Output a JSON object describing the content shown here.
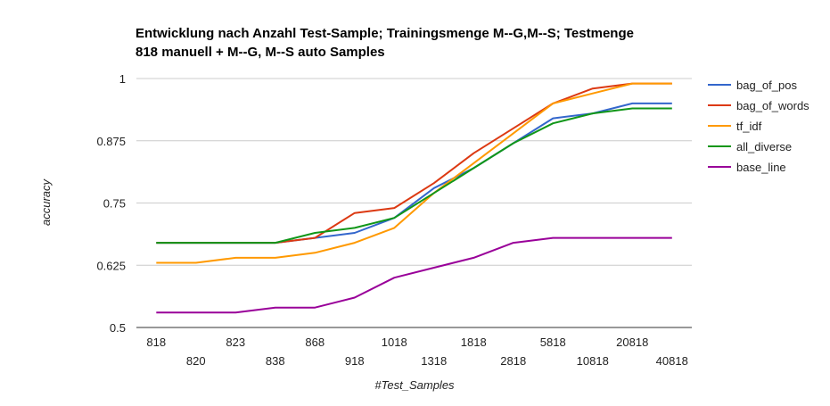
{
  "chart_data": {
    "type": "line",
    "title": [
      "Entwicklung nach Anzahl Test-Sample; Trainingsmenge M--G,M--S; Testmenge",
      "818 manuell + M--G, M--S auto Samples"
    ],
    "xlabel": "#Test_Samples",
    "ylabel": "accuracy",
    "categories": [
      "818",
      "820",
      "823",
      "838",
      "868",
      "918",
      "1018",
      "1318",
      "1818",
      "2818",
      "5818",
      "10818",
      "20818",
      "40818"
    ],
    "y_ticks": [
      "0.5",
      "0.625",
      "0.75",
      "0.875",
      "1"
    ],
    "ylim": [
      0.5,
      1.0
    ],
    "grid": true,
    "legend_position": "right",
    "series": [
      {
        "name": "bag_of_pos",
        "color": "#3366cc",
        "values": [
          0.67,
          0.67,
          0.67,
          0.67,
          0.68,
          0.69,
          0.72,
          0.78,
          0.82,
          0.87,
          0.92,
          0.93,
          0.95,
          0.95
        ]
      },
      {
        "name": "bag_of_words",
        "color": "#dc3912",
        "values": [
          0.67,
          0.67,
          0.67,
          0.67,
          0.68,
          0.73,
          0.74,
          0.79,
          0.85,
          0.9,
          0.95,
          0.98,
          0.99,
          0.99
        ]
      },
      {
        "name": "tf_idf",
        "color": "#ff9900",
        "values": [
          0.63,
          0.63,
          0.64,
          0.64,
          0.65,
          0.67,
          0.7,
          0.77,
          0.83,
          0.89,
          0.95,
          0.97,
          0.99,
          0.99
        ]
      },
      {
        "name": "all_diverse",
        "color": "#109618",
        "values": [
          0.67,
          0.67,
          0.67,
          0.67,
          0.69,
          0.7,
          0.72,
          0.77,
          0.82,
          0.87,
          0.91,
          0.93,
          0.94,
          0.94
        ]
      },
      {
        "name": "base_line",
        "color": "#990099",
        "values": [
          0.53,
          0.53,
          0.53,
          0.54,
          0.54,
          0.56,
          0.6,
          0.62,
          0.64,
          0.67,
          0.68,
          0.68,
          0.68,
          0.68
        ]
      }
    ]
  }
}
